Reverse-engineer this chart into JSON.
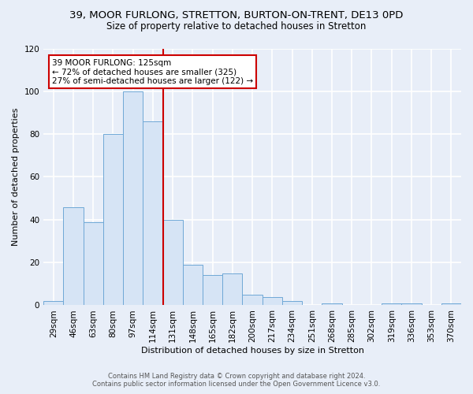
{
  "title": "39, MOOR FURLONG, STRETTON, BURTON-ON-TRENT, DE13 0PD",
  "subtitle": "Size of property relative to detached houses in Stretton",
  "xlabel": "Distribution of detached houses by size in Stretton",
  "ylabel": "Number of detached properties",
  "bar_labels": [
    "29sqm",
    "46sqm",
    "63sqm",
    "80sqm",
    "97sqm",
    "114sqm",
    "131sqm",
    "148sqm",
    "165sqm",
    "182sqm",
    "200sqm",
    "217sqm",
    "234sqm",
    "251sqm",
    "268sqm",
    "285sqm",
    "302sqm",
    "319sqm",
    "336sqm",
    "353sqm",
    "370sqm"
  ],
  "bar_values": [
    2,
    46,
    39,
    80,
    100,
    86,
    40,
    19,
    14,
    15,
    5,
    4,
    2,
    0,
    1,
    0,
    0,
    1,
    1,
    0,
    1
  ],
  "bar_color": "#d6e4f5",
  "bar_edge_color": "#6fa8d6",
  "ylim": [
    0,
    120
  ],
  "yticks": [
    0,
    20,
    40,
    60,
    80,
    100,
    120
  ],
  "vline_index": 6,
  "vline_color": "#cc0000",
  "annotation_title": "39 MOOR FURLONG: 125sqm",
  "annotation_line1": "← 72% of detached houses are smaller (325)",
  "annotation_line2": "27% of semi-detached houses are larger (122) →",
  "annotation_box_facecolor": "#ffffff",
  "annotation_box_edgecolor": "#cc0000",
  "footer_line1": "Contains HM Land Registry data © Crown copyright and database right 2024.",
  "footer_line2": "Contains public sector information licensed under the Open Government Licence v3.0.",
  "background_color": "#e8eef8",
  "plot_background_color": "#e8eef8",
  "grid_color": "#ffffff",
  "title_fontsize": 9.5,
  "subtitle_fontsize": 8.5,
  "axis_label_fontsize": 8.0,
  "tick_fontsize": 7.5,
  "annotation_fontsize": 7.5,
  "footer_fontsize": 6.0
}
